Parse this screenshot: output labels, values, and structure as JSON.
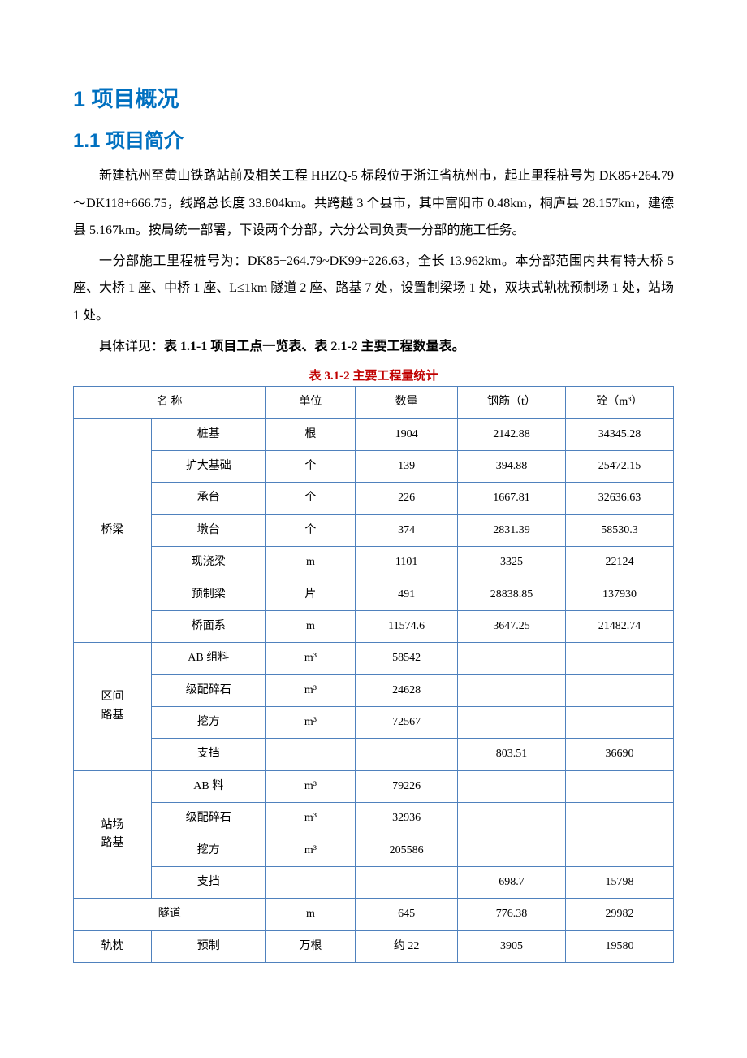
{
  "heading1": "1  项目概况",
  "heading2": "1.1  项目简介",
  "para1": "新建杭州至黄山铁路站前及相关工程 HHZQ-5 标段位于浙江省杭州市，起止里程桩号为 DK85+264.79～DK118+666.75，线路总长度 33.804km。共跨越 3 个县市，其中富阳市 0.48km，桐庐县 28.157km，建德县 5.167km。按局统一部署，下设两个分部，六分公司负责一分部的施工任务。",
  "para2": "一分部施工里程桩号为：DK85+264.79~DK99+226.63，全长 13.962km。本分部范围内共有特大桥 5 座、大桥 1 座、中桥 1 座、L≤1km 隧道 2 座、路基 7 处，设置制梁场 1 处，双块式轨枕预制场 1 处，站场 1 处。",
  "para3_prefix": "具体详见：",
  "para3_bold": "表 1.1-1 项目工点一览表、表 2.1-2 主要工程数量表。",
  "tableCaption": "表 3.1-2 主要工程量统计",
  "headers": {
    "name": "名 称",
    "unit": "单位",
    "qty": "数量",
    "steel": "钢筋（t）",
    "concrete": "砼（m³）"
  },
  "groups": [
    {
      "group": "桥梁",
      "rows": [
        {
          "name": "桩基",
          "unit": "根",
          "qty": "1904",
          "steel": "2142.88",
          "concrete": "34345.28"
        },
        {
          "name": "扩大基础",
          "unit": "个",
          "qty": "139",
          "steel": "394.88",
          "concrete": "25472.15"
        },
        {
          "name": "承台",
          "unit": "个",
          "qty": "226",
          "steel": "1667.81",
          "concrete": "32636.63"
        },
        {
          "name": "墩台",
          "unit": "个",
          "qty": "374",
          "steel": "2831.39",
          "concrete": "58530.3"
        },
        {
          "name": "现浇梁",
          "unit": "m",
          "qty": "1101",
          "steel": "3325",
          "concrete": "22124"
        },
        {
          "name": "预制梁",
          "unit": "片",
          "qty": "491",
          "steel": "28838.85",
          "concrete": "137930"
        },
        {
          "name": "桥面系",
          "unit": "m",
          "qty": "11574.6",
          "steel": "3647.25",
          "concrete": "21482.74"
        }
      ]
    },
    {
      "group": "区间路基",
      "rows": [
        {
          "name": "AB 组料",
          "unit": "m³",
          "qty": "58542",
          "steel": "",
          "concrete": ""
        },
        {
          "name": "级配碎石",
          "unit": "m³",
          "qty": "24628",
          "steel": "",
          "concrete": ""
        },
        {
          "name": "挖方",
          "unit": "m³",
          "qty": "72567",
          "steel": "",
          "concrete": ""
        },
        {
          "name": "支挡",
          "unit": "",
          "qty": "",
          "steel": "803.51",
          "concrete": "36690"
        }
      ]
    },
    {
      "group": "站场路基",
      "rows": [
        {
          "name": "AB 料",
          "unit": "m³",
          "qty": "79226",
          "steel": "",
          "concrete": ""
        },
        {
          "name": "级配碎石",
          "unit": "m³",
          "qty": "32936",
          "steel": "",
          "concrete": ""
        },
        {
          "name": "挖方",
          "unit": "m³",
          "qty": "205586",
          "steel": "",
          "concrete": ""
        },
        {
          "name": "支挡",
          "unit": "",
          "qty": "",
          "steel": "698.7",
          "concrete": "15798"
        }
      ]
    }
  ],
  "tunnelRow": {
    "name": "隧道",
    "unit": "m",
    "qty": "645",
    "steel": "776.38",
    "concrete": "29982"
  },
  "sleeperRow": {
    "group": "轨枕",
    "name": "预制",
    "unit": "万根",
    "qty": "约 22",
    "steel": "3905",
    "concrete": "19580"
  },
  "colors": {
    "headingColor": "#0070c0",
    "captionColor": "#c00000",
    "borderColor": "#4f81bd",
    "textColor": "#000000",
    "bgColor": "#ffffff"
  }
}
